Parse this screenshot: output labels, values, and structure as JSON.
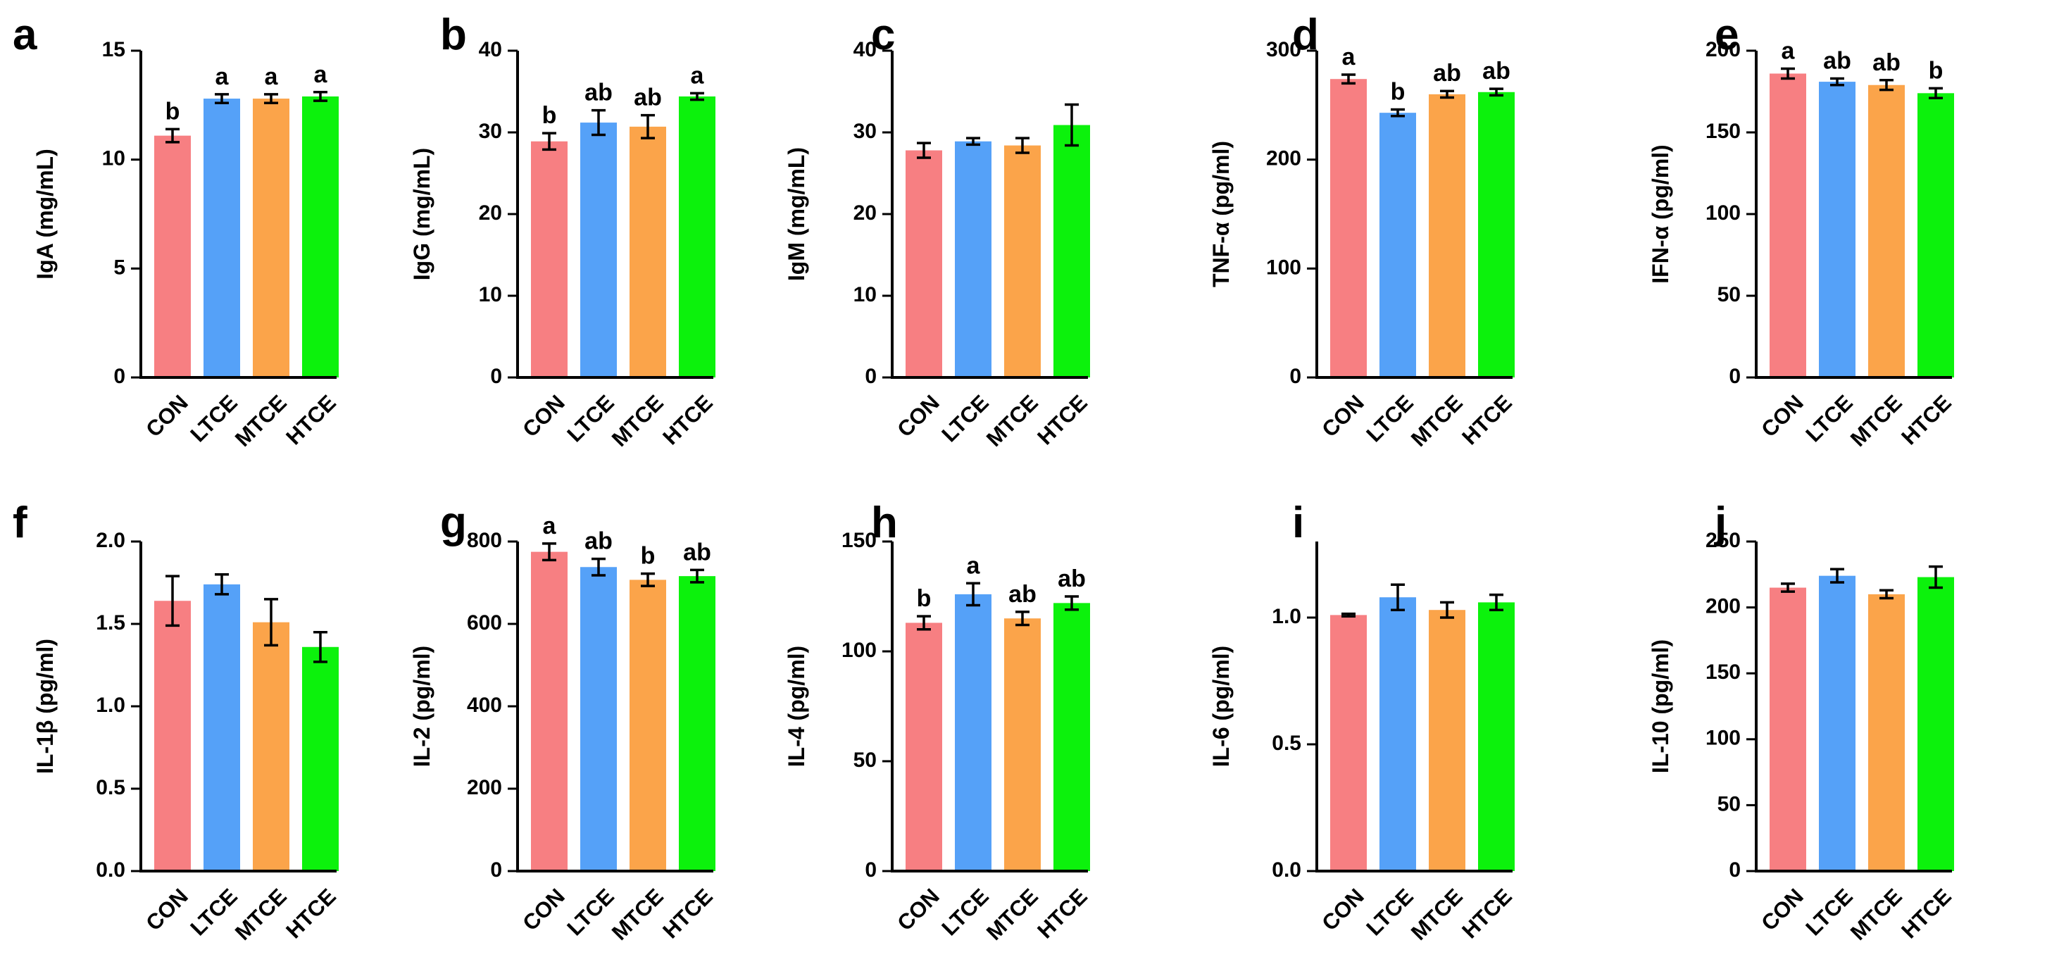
{
  "colors": {
    "CON": "#f77f82",
    "LTCE": "#55a1f8",
    "MTCE": "#fba44a",
    "HTCE": "#0cf20c",
    "axis": "#000000"
  },
  "chart_data": [
    {
      "type": "bar",
      "panel": "a",
      "ylabel": "IgA (mg/mL)",
      "categories": [
        "CON",
        "LTCE",
        "MTCE",
        "HTCE"
      ],
      "values": [
        11.1,
        12.8,
        12.8,
        12.9
      ],
      "errors": [
        0.3,
        0.2,
        0.2,
        0.2
      ],
      "significance": [
        "b",
        "a",
        "a",
        "a"
      ],
      "ylim": [
        0,
        15
      ],
      "yticks": [
        "0",
        "5",
        "10",
        "15"
      ],
      "yticks_values": [
        0,
        5,
        10,
        15
      ]
    },
    {
      "type": "bar",
      "panel": "b",
      "ylabel": "IgG (mg/mL)",
      "categories": [
        "CON",
        "LTCE",
        "MTCE",
        "HTCE"
      ],
      "values": [
        28.9,
        31.2,
        30.7,
        34.4
      ],
      "errors": [
        1.0,
        1.5,
        1.4,
        0.4
      ],
      "significance": [
        "b",
        "ab",
        "ab",
        "a"
      ],
      "ylim": [
        0,
        40
      ],
      "yticks": [
        "0",
        "10",
        "20",
        "30",
        "40"
      ],
      "yticks_values": [
        0,
        10,
        20,
        30,
        40
      ]
    },
    {
      "type": "bar",
      "panel": "c",
      "ylabel": "IgM (mg/mL)",
      "categories": [
        "CON",
        "LTCE",
        "MTCE",
        "HTCE"
      ],
      "values": [
        27.8,
        28.9,
        28.4,
        30.9
      ],
      "errors": [
        0.9,
        0.4,
        0.9,
        2.5
      ],
      "significance": [
        "",
        "",
        "",
        ""
      ],
      "ylim": [
        0,
        40
      ],
      "yticks": [
        "0",
        "10",
        "20",
        "30",
        "40"
      ],
      "yticks_values": [
        0,
        10,
        20,
        30,
        40
      ]
    },
    {
      "type": "bar",
      "panel": "d",
      "ylabel": "TNF-α (pg/ml)",
      "categories": [
        "CON",
        "LTCE",
        "MTCE",
        "HTCE"
      ],
      "values": [
        274,
        243,
        260,
        262
      ],
      "errors": [
        4,
        3,
        3,
        3
      ],
      "significance": [
        "a",
        "b",
        "ab",
        "ab"
      ],
      "ylim": [
        0,
        300
      ],
      "yticks": [
        "0",
        "100",
        "200",
        "300"
      ],
      "yticks_values": [
        0,
        100,
        200,
        300
      ]
    },
    {
      "type": "bar",
      "panel": "e",
      "ylabel": "IFN-α (pg/ml)",
      "categories": [
        "CON",
        "LTCE",
        "MTCE",
        "HTCE"
      ],
      "values": [
        186,
        181,
        179,
        174
      ],
      "errors": [
        3,
        2,
        3,
        3
      ],
      "significance": [
        "a",
        "ab",
        "ab",
        "b"
      ],
      "ylim": [
        0,
        200
      ],
      "yticks": [
        "0",
        "50",
        "100",
        "150",
        "200"
      ],
      "yticks_values": [
        0,
        50,
        100,
        150,
        200
      ]
    },
    {
      "type": "bar",
      "panel": "f",
      "ylabel": "IL-1β (pg/ml)",
      "categories": [
        "CON",
        "LTCE",
        "MTCE",
        "HTCE"
      ],
      "values": [
        1.64,
        1.74,
        1.51,
        1.36
      ],
      "errors": [
        0.15,
        0.06,
        0.14,
        0.09
      ],
      "significance": [
        "",
        "",
        "",
        ""
      ],
      "ylim": [
        0,
        2.0
      ],
      "yticks": [
        "0.0",
        "0.5",
        "1.0",
        "1.5",
        "2.0"
      ],
      "yticks_values": [
        0,
        0.5,
        1.0,
        1.5,
        2.0
      ]
    },
    {
      "type": "bar",
      "panel": "g",
      "ylabel": "IL-2 (pg/ml)",
      "categories": [
        "CON",
        "LTCE",
        "MTCE",
        "HTCE"
      ],
      "values": [
        775,
        738,
        707,
        716
      ],
      "errors": [
        20,
        20,
        15,
        15
      ],
      "significance": [
        "a",
        "ab",
        "b",
        "ab"
      ],
      "ylim": [
        0,
        800
      ],
      "yticks": [
        "0",
        "200",
        "400",
        "600",
        "800"
      ],
      "yticks_values": [
        0,
        200,
        400,
        600,
        800
      ]
    },
    {
      "type": "bar",
      "panel": "h",
      "ylabel": "IL-4 (pg/ml)",
      "categories": [
        "CON",
        "LTCE",
        "MTCE",
        "HTCE"
      ],
      "values": [
        113,
        126,
        115,
        122
      ],
      "errors": [
        3,
        5,
        3,
        3
      ],
      "significance": [
        "b",
        "a",
        "ab",
        "ab"
      ],
      "ylim": [
        0,
        150
      ],
      "yticks": [
        "0",
        "50",
        "100",
        "150"
      ],
      "yticks_values": [
        0,
        50,
        100,
        150
      ]
    },
    {
      "type": "bar",
      "panel": "i",
      "ylabel": "IL-6 (pg/ml)",
      "categories": [
        "CON",
        "LTCE",
        "MTCE",
        "HTCE"
      ],
      "values": [
        1.01,
        1.08,
        1.03,
        1.06
      ],
      "errors": [
        0.005,
        0.05,
        0.03,
        0.03
      ],
      "significance": [
        "",
        "",
        "",
        ""
      ],
      "ylim": [
        0,
        1.3
      ],
      "yticks": [
        "0.0",
        "0.5",
        "1.0"
      ],
      "yticks_values": [
        0,
        0.5,
        1.0
      ]
    },
    {
      "type": "bar",
      "panel": "j",
      "ylabel": "IL-10 (pg/ml)",
      "categories": [
        "CON",
        "LTCE",
        "MTCE",
        "HTCE"
      ],
      "values": [
        215,
        224,
        210,
        223
      ],
      "errors": [
        3,
        5,
        3,
        8
      ],
      "significance": [
        "",
        "",
        "",
        ""
      ],
      "ylim": [
        0,
        250
      ],
      "yticks": [
        "0",
        "50",
        "100",
        "150",
        "200",
        "250"
      ],
      "yticks_values": [
        0,
        50,
        100,
        150,
        200,
        250
      ]
    }
  ]
}
